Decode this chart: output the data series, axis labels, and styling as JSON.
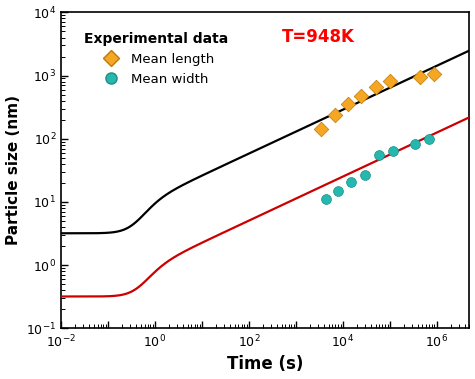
{
  "title": "T=948K",
  "title_color": "red",
  "xlabel": "Time (s)",
  "ylabel": "Particle size (nm)",
  "xlim": [
    0.01,
    5000000.0
  ],
  "ylim": [
    0.1,
    10000.0
  ],
  "legend_title": "Experimental data",
  "black_line_color": "#000000",
  "red_line_color": "#cc0000",
  "diamond_color": "#f5a623",
  "circle_color": "#26b8b0",
  "exp_length_x": [
    3500,
    7000,
    13000,
    25000,
    50000,
    100000,
    450000,
    900000
  ],
  "exp_length_y": [
    145,
    240,
    350,
    470,
    650,
    820,
    950,
    1050
  ],
  "exp_width_x": [
    4500,
    8000,
    15000,
    30000,
    60000,
    120000,
    350000,
    700000
  ],
  "exp_width_y": [
    11,
    15,
    21,
    27,
    55,
    65,
    82,
    100
  ]
}
